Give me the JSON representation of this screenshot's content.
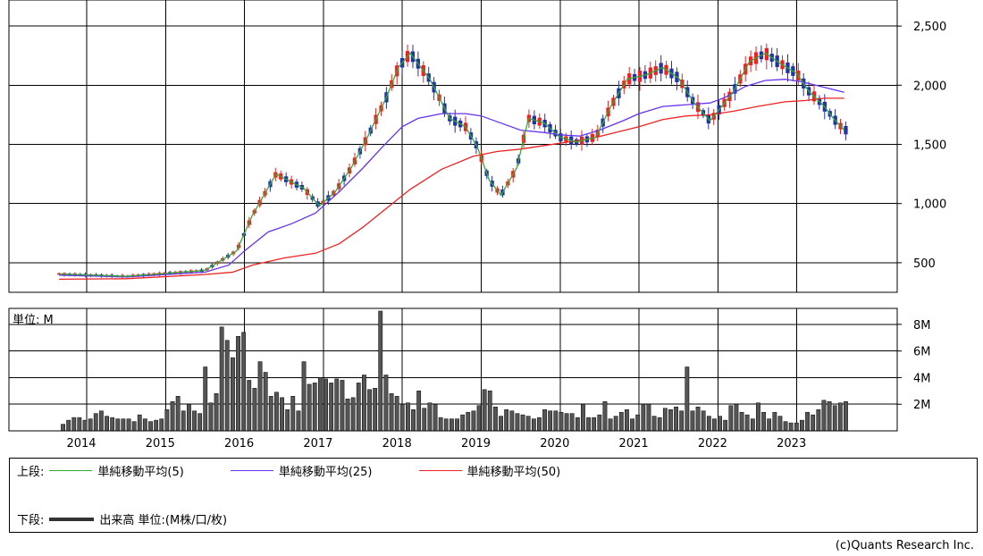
{
  "chart_data": {
    "type": "candlestick",
    "price_panel": {
      "y_ticks": [
        "500",
        "1,000",
        "1,500",
        "2,000",
        "2,500"
      ],
      "ylim": [
        250,
        2720
      ],
      "series": [
        {
          "key": "ma5",
          "name": "単純移動平均(5)",
          "color": "#33aa33",
          "points": [
            [
              2013.65,
              405
            ],
            [
              2014.5,
              385
            ],
            [
              2015.5,
              435
            ],
            [
              2015.9,
              600
            ],
            [
              2016.1,
              900
            ],
            [
              2016.4,
              1250
            ],
            [
              2016.6,
              1180
            ],
            [
              2016.75,
              1130
            ],
            [
              2016.95,
              980
            ],
            [
              2017.15,
              1100
            ],
            [
              2017.35,
              1300
            ],
            [
              2017.55,
              1550
            ],
            [
              2017.8,
              1900
            ],
            [
              2017.95,
              2150
            ],
            [
              2018.1,
              2270
            ],
            [
              2018.35,
              2050
            ],
            [
              2018.6,
              1720
            ],
            [
              2018.8,
              1650
            ],
            [
              2018.95,
              1480
            ],
            [
              2019.1,
              1200
            ],
            [
              2019.25,
              1070
            ],
            [
              2019.45,
              1300
            ],
            [
              2019.6,
              1720
            ],
            [
              2019.8,
              1680
            ],
            [
              2020.0,
              1560
            ],
            [
              2020.2,
              1520
            ],
            [
              2020.45,
              1560
            ],
            [
              2020.65,
              1830
            ],
            [
              2020.85,
              2050
            ],
            [
              2021.1,
              2090
            ],
            [
              2021.3,
              2150
            ],
            [
              2021.5,
              2060
            ],
            [
              2021.7,
              1850
            ],
            [
              2021.9,
              1700
            ],
            [
              2022.0,
              1780
            ],
            [
              2022.2,
              1950
            ],
            [
              2022.4,
              2200
            ],
            [
              2022.6,
              2270
            ],
            [
              2022.8,
              2180
            ],
            [
              2023.0,
              2100
            ],
            [
              2023.15,
              1950
            ],
            [
              2023.35,
              1820
            ],
            [
              2023.45,
              1730
            ],
            [
              2023.6,
              1620
            ]
          ]
        },
        {
          "key": "ma25",
          "name": "単純移動平均(25)",
          "color": "#6633ee",
          "points": [
            [
              2013.65,
              395
            ],
            [
              2014.5,
              380
            ],
            [
              2015.5,
              420
            ],
            [
              2015.8,
              480
            ],
            [
              2016.0,
              600
            ],
            [
              2016.3,
              760
            ],
            [
              2016.6,
              830
            ],
            [
              2016.9,
              920
            ],
            [
              2017.2,
              1100
            ],
            [
              2017.5,
              1300
            ],
            [
              2017.75,
              1480
            ],
            [
              2018.0,
              1650
            ],
            [
              2018.2,
              1720
            ],
            [
              2018.5,
              1760
            ],
            [
              2018.8,
              1760
            ],
            [
              2019.0,
              1740
            ],
            [
              2019.25,
              1680
            ],
            [
              2019.5,
              1620
            ],
            [
              2019.8,
              1600
            ],
            [
              2020.0,
              1580
            ],
            [
              2020.25,
              1570
            ],
            [
              2020.5,
              1620
            ],
            [
              2020.8,
              1700
            ],
            [
              2021.0,
              1760
            ],
            [
              2021.3,
              1820
            ],
            [
              2021.5,
              1830
            ],
            [
              2021.7,
              1840
            ],
            [
              2021.9,
              1850
            ],
            [
              2022.1,
              1900
            ],
            [
              2022.35,
              1990
            ],
            [
              2022.6,
              2040
            ],
            [
              2022.85,
              2050
            ],
            [
              2023.05,
              2030
            ],
            [
              2023.3,
              1990
            ],
            [
              2023.6,
              1940
            ]
          ]
        },
        {
          "key": "ma50",
          "name": "単純移動平均(50)",
          "color": "#ee2222",
          "points": [
            [
              2013.65,
              360
            ],
            [
              2014.5,
              365
            ],
            [
              2015.5,
              400
            ],
            [
              2015.85,
              420
            ],
            [
              2016.1,
              480
            ],
            [
              2016.5,
              540
            ],
            [
              2016.9,
              580
            ],
            [
              2017.2,
              660
            ],
            [
              2017.5,
              800
            ],
            [
              2017.8,
              960
            ],
            [
              2018.1,
              1120
            ],
            [
              2018.5,
              1290
            ],
            [
              2018.9,
              1400
            ],
            [
              2019.2,
              1440
            ],
            [
              2019.5,
              1460
            ],
            [
              2019.8,
              1490
            ],
            [
              2020.1,
              1520
            ],
            [
              2020.4,
              1550
            ],
            [
              2020.7,
              1600
            ],
            [
              2021.0,
              1650
            ],
            [
              2021.3,
              1710
            ],
            [
              2021.6,
              1740
            ],
            [
              2021.9,
              1750
            ],
            [
              2022.2,
              1780
            ],
            [
              2022.5,
              1820
            ],
            [
              2022.85,
              1860
            ],
            [
              2023.1,
              1870
            ],
            [
              2023.35,
              1890
            ],
            [
              2023.6,
              1890
            ]
          ]
        }
      ]
    },
    "volume_panel": {
      "unit_label": "単位: M",
      "y_ticks": [
        "2M",
        "4M",
        "6M",
        "8M"
      ],
      "ylim": [
        0,
        9.2
      ],
      "values": [
        0.5,
        0.8,
        1.0,
        1.0,
        0.8,
        0.9,
        1.3,
        1.5,
        1.1,
        1.0,
        0.9,
        0.9,
        0.9,
        0.7,
        1.2,
        0.9,
        0.7,
        0.8,
        0.9,
        1.6,
        2.2,
        2.6,
        1.5,
        2.0,
        1.5,
        1.3,
        4.8,
        2.1,
        2.8,
        7.8,
        6.8,
        5.5,
        7.1,
        7.4,
        3.8,
        3.2,
        5.2,
        4.4,
        2.6,
        2.9,
        2.5,
        1.6,
        2.6,
        1.5,
        5.2,
        3.5,
        3.6,
        4.0,
        3.9,
        3.6,
        3.9,
        3.8,
        2.4,
        2.5,
        3.6,
        4.2,
        3.1,
        3.2,
        9.0,
        4.2,
        2.8,
        2.6,
        2.0,
        2.1,
        1.6,
        3.0,
        1.7,
        2.1,
        2.0,
        1.0,
        0.9,
        0.9,
        0.9,
        1.2,
        1.4,
        1.5,
        1.9,
        3.1,
        3.0,
        1.8,
        1.1,
        1.6,
        1.5,
        1.3,
        1.2,
        1.1,
        0.9,
        1.0,
        1.6,
        1.5,
        1.5,
        1.4,
        1.3,
        1.3,
        1.0,
        2.0,
        1.0,
        1.0,
        1.2,
        2.2,
        0.9,
        1.1,
        1.4,
        1.6,
        0.9,
        1.2,
        2.0,
        2.0,
        1.1,
        1.0,
        1.7,
        1.6,
        1.8,
        1.5,
        4.8,
        1.5,
        1.8,
        1.5,
        1.1,
        0.9,
        1.1,
        0.8,
        1.9,
        2.0,
        1.4,
        1.2,
        0.9,
        2.1,
        1.4,
        0.9,
        1.4,
        1.1,
        0.7,
        0.6,
        0.6,
        0.8,
        1.4,
        1.2,
        1.6,
        2.3,
        2.2,
        1.9,
        2.1,
        2.2
      ]
    },
    "x_ticks": [
      "2014",
      "2015",
      "2016",
      "2017",
      "2018",
      "2019",
      "2020",
      "2021",
      "2022",
      "2023"
    ],
    "grid": true,
    "up_color": "#ee2222",
    "down_color": "#2233aa",
    "volume_color": "#555555"
  },
  "legend": {
    "upper_label": "上段:",
    "lower_label": "下段:",
    "ma5_label": "単純移動平均(5)",
    "ma25_label": "単純移動平均(25)",
    "ma50_label": "単純移動平均(50)",
    "volume_label": "出来高 単位:(M株/口/枚)"
  },
  "copyright": "(c)Quants Research Inc."
}
